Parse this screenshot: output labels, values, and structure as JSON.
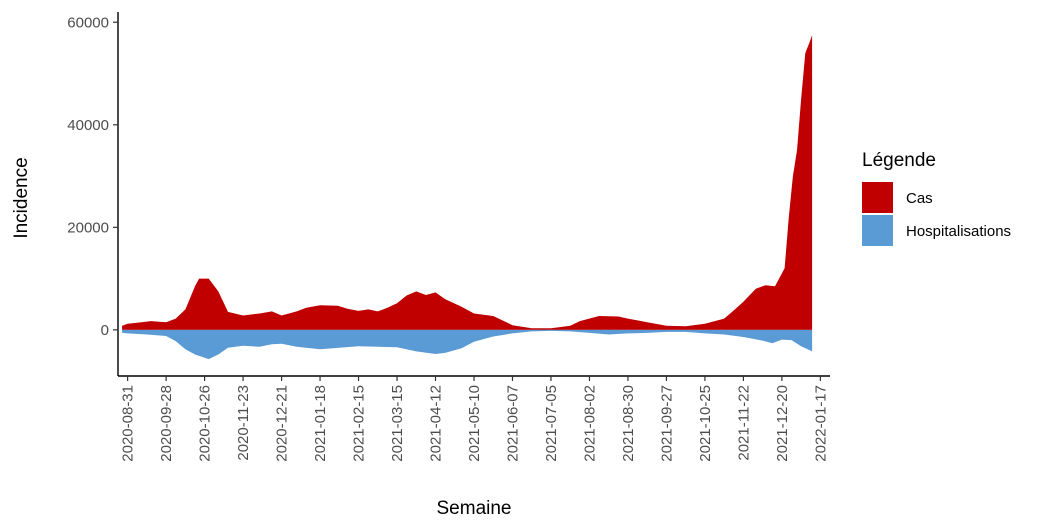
{
  "chart_data": {
    "type": "area",
    "xlabel": "Semaine",
    "ylabel": "Incidence",
    "ylim": [
      -9000,
      62000
    ],
    "y_ticks": [
      0,
      20000,
      40000,
      60000
    ],
    "y_tick_labels": [
      "0",
      "20000",
      "40000",
      "60000"
    ],
    "x_range": [
      "2020-08-24",
      "2022-01-24"
    ],
    "x_ticks": [
      "2020-08-31",
      "2020-09-28",
      "2020-10-26",
      "2020-11-23",
      "2020-12-21",
      "2021-01-18",
      "2021-02-15",
      "2021-03-15",
      "2021-04-12",
      "2021-05-10",
      "2021-06-07",
      "2021-07-05",
      "2021-08-02",
      "2021-08-30",
      "2021-09-27",
      "2021-10-25",
      "2021-11-22",
      "2021-12-20",
      "2022-01-17"
    ],
    "grid": false,
    "legend": {
      "title": "Légende",
      "position": "right",
      "entries": [
        {
          "label": "Cas",
          "color": "#c00000"
        },
        {
          "label": "Hospitalisations",
          "color": "#5b9bd5"
        }
      ]
    },
    "series": [
      {
        "name": "Cas",
        "color": "#c00000",
        "points": [
          [
            "2020-08-27",
            800
          ],
          [
            "2020-08-31",
            1200
          ],
          [
            "2020-09-10",
            1500
          ],
          [
            "2020-09-17",
            1700
          ],
          [
            "2020-09-28",
            1500
          ],
          [
            "2020-10-05",
            2200
          ],
          [
            "2020-10-12",
            4000
          ],
          [
            "2020-10-19",
            8500
          ],
          [
            "2020-10-22",
            10000
          ],
          [
            "2020-10-29",
            10000
          ],
          [
            "2020-11-05",
            7500
          ],
          [
            "2020-11-12",
            3500
          ],
          [
            "2020-11-23",
            2800
          ],
          [
            "2020-12-05",
            3200
          ],
          [
            "2020-12-14",
            3600
          ],
          [
            "2020-12-21",
            2800
          ],
          [
            "2021-01-01",
            3600
          ],
          [
            "2021-01-08",
            4300
          ],
          [
            "2021-01-18",
            4800
          ],
          [
            "2021-01-31",
            4700
          ],
          [
            "2021-02-07",
            4100
          ],
          [
            "2021-02-15",
            3700
          ],
          [
            "2021-02-22",
            4000
          ],
          [
            "2021-03-01",
            3600
          ],
          [
            "2021-03-08",
            4300
          ],
          [
            "2021-03-15",
            5200
          ],
          [
            "2021-03-22",
            6700
          ],
          [
            "2021-03-29",
            7500
          ],
          [
            "2021-04-05",
            6800
          ],
          [
            "2021-04-12",
            7300
          ],
          [
            "2021-04-19",
            6000
          ],
          [
            "2021-05-01",
            4500
          ],
          [
            "2021-05-10",
            3200
          ],
          [
            "2021-05-24",
            2700
          ],
          [
            "2021-06-07",
            900
          ],
          [
            "2021-06-21",
            300
          ],
          [
            "2021-07-05",
            300
          ],
          [
            "2021-07-19",
            800
          ],
          [
            "2021-07-26",
            1700
          ],
          [
            "2021-08-09",
            2700
          ],
          [
            "2021-08-23",
            2600
          ],
          [
            "2021-08-30",
            2200
          ],
          [
            "2021-09-13",
            1500
          ],
          [
            "2021-09-27",
            800
          ],
          [
            "2021-10-11",
            700
          ],
          [
            "2021-10-25",
            1200
          ],
          [
            "2021-11-08",
            2200
          ],
          [
            "2021-11-15",
            3800
          ],
          [
            "2021-11-22",
            5500
          ],
          [
            "2021-12-01",
            8000
          ],
          [
            "2021-12-08",
            8700
          ],
          [
            "2021-12-15",
            8500
          ],
          [
            "2021-12-18",
            10000
          ],
          [
            "2021-12-22",
            12000
          ],
          [
            "2021-12-25",
            22000
          ],
          [
            "2021-12-28",
            30000
          ],
          [
            "2021-12-31",
            35000
          ],
          [
            "2022-01-03",
            45000
          ],
          [
            "2022-01-06",
            54000
          ],
          [
            "2022-01-09",
            56000
          ],
          [
            "2022-01-11",
            57500
          ]
        ]
      },
      {
        "name": "Hospitalisations",
        "color": "#5b9bd5",
        "points": [
          [
            "2020-08-27",
            -600
          ],
          [
            "2020-08-31",
            -700
          ],
          [
            "2020-09-14",
            -900
          ],
          [
            "2020-09-28",
            -1200
          ],
          [
            "2020-10-05",
            -2200
          ],
          [
            "2020-10-12",
            -3800
          ],
          [
            "2020-10-19",
            -4800
          ],
          [
            "2020-10-29",
            -5700
          ],
          [
            "2020-11-05",
            -4800
          ],
          [
            "2020-11-12",
            -3500
          ],
          [
            "2020-11-23",
            -3100
          ],
          [
            "2020-12-05",
            -3300
          ],
          [
            "2020-12-14",
            -2800
          ],
          [
            "2020-12-21",
            -2700
          ],
          [
            "2021-01-01",
            -3300
          ],
          [
            "2021-01-18",
            -3800
          ],
          [
            "2021-02-01",
            -3500
          ],
          [
            "2021-02-15",
            -3200
          ],
          [
            "2021-03-01",
            -3300
          ],
          [
            "2021-03-15",
            -3400
          ],
          [
            "2021-03-29",
            -4200
          ],
          [
            "2021-04-12",
            -4700
          ],
          [
            "2021-04-19",
            -4500
          ],
          [
            "2021-05-01",
            -3600
          ],
          [
            "2021-05-10",
            -2300
          ],
          [
            "2021-05-24",
            -1300
          ],
          [
            "2021-06-07",
            -700
          ],
          [
            "2021-06-21",
            -300
          ],
          [
            "2021-07-05",
            -200
          ],
          [
            "2021-07-19",
            -300
          ],
          [
            "2021-08-02",
            -600
          ],
          [
            "2021-08-16",
            -900
          ],
          [
            "2021-08-30",
            -700
          ],
          [
            "2021-09-13",
            -600
          ],
          [
            "2021-09-27",
            -400
          ],
          [
            "2021-10-11",
            -400
          ],
          [
            "2021-10-25",
            -700
          ],
          [
            "2021-11-08",
            -900
          ],
          [
            "2021-11-22",
            -1400
          ],
          [
            "2021-12-06",
            -2100
          ],
          [
            "2021-12-13",
            -2600
          ],
          [
            "2021-12-20",
            -1900
          ],
          [
            "2021-12-27",
            -2000
          ],
          [
            "2022-01-03",
            -3200
          ],
          [
            "2022-01-11",
            -4200
          ]
        ]
      }
    ]
  }
}
